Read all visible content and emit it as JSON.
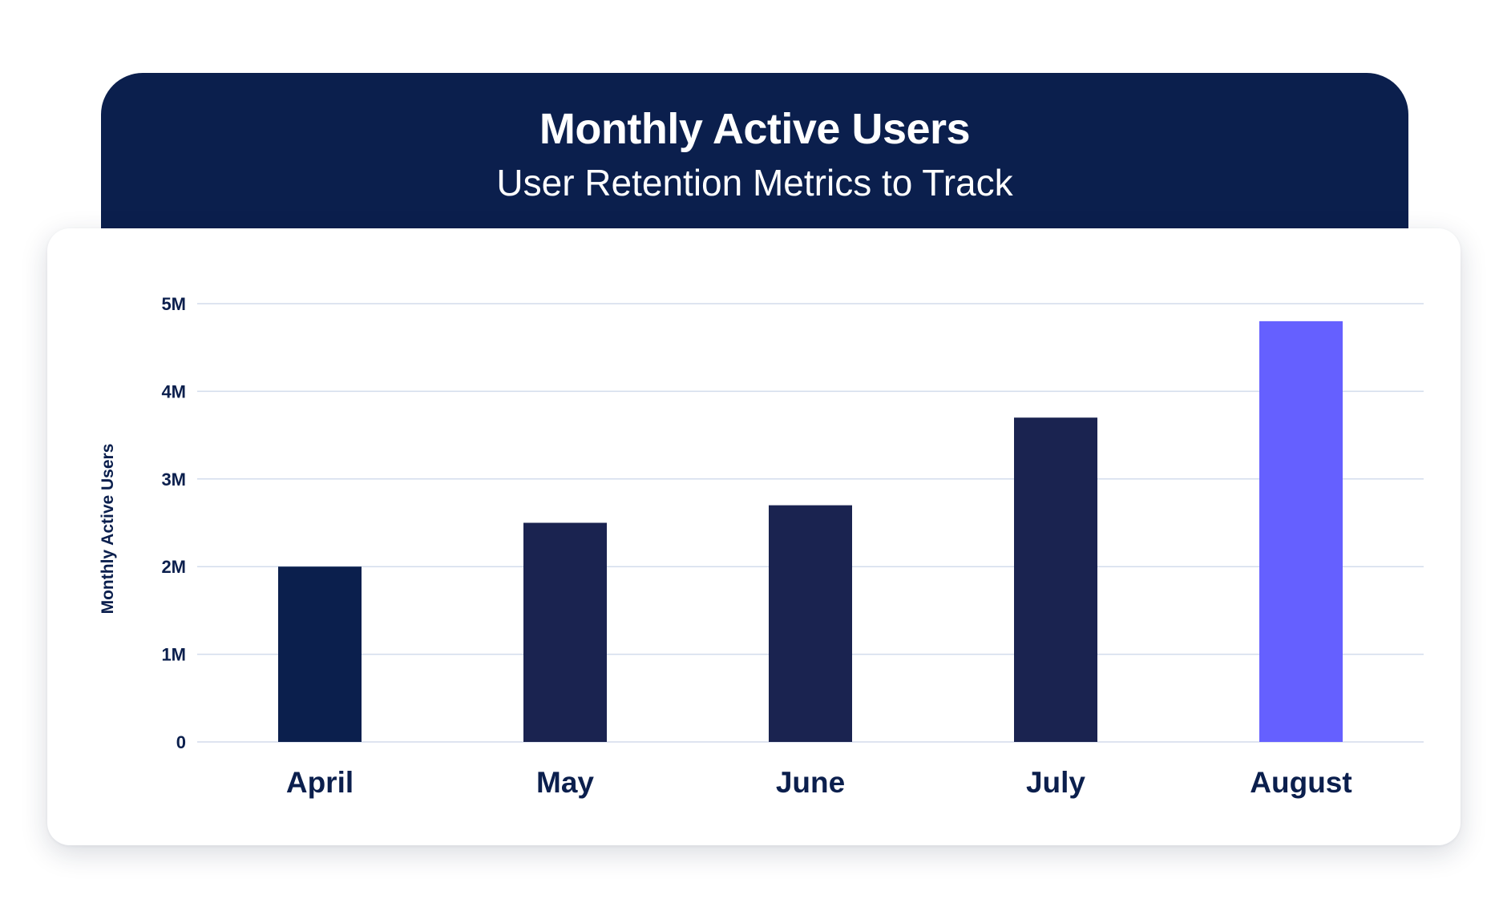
{
  "chart_data": {
    "type": "bar",
    "title": "Monthly Active Users",
    "subtitle": "User Retention Metrics to Track",
    "ylabel": "Monthly Active Users",
    "xlabel": "",
    "categories": [
      "April",
      "May",
      "June",
      "July",
      "August"
    ],
    "values": [
      2000000,
      2500000,
      2700000,
      3700000,
      4800000
    ],
    "ylim": [
      0,
      5000000
    ],
    "yticks": [
      0,
      1000000,
      2000000,
      3000000,
      4000000,
      5000000
    ],
    "ytick_labels": [
      "0",
      "1M",
      "2M",
      "3M",
      "4M",
      "5M"
    ],
    "grid": true,
    "bar_colors": [
      "#0b1f4d",
      "#1a2350",
      "#1a2350",
      "#1a2350",
      "#6560ff"
    ]
  },
  "colors": {
    "header_background": "#0b1f4d",
    "gridline": "#d3dcec",
    "text": "#0b1f4d",
    "highlight": "#6560ff"
  }
}
